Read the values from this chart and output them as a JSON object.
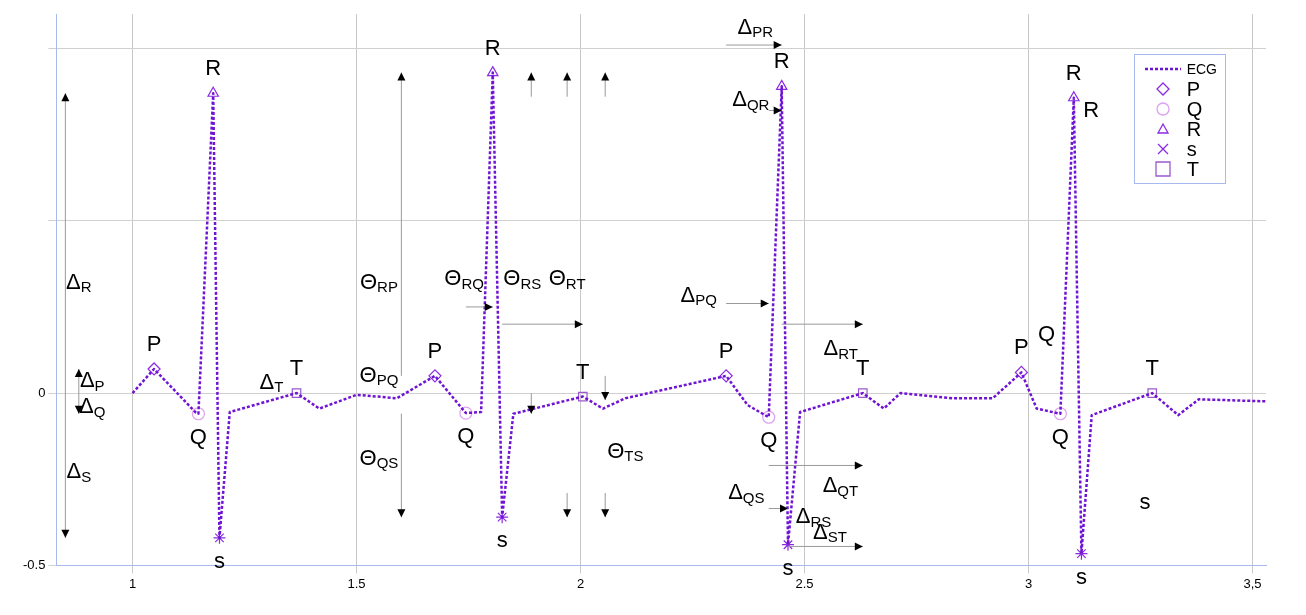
{
  "chart_data": {
    "type": "line",
    "xlim": [
      0.83,
      3.53
    ],
    "ylim": [
      -0.5,
      1.1
    ],
    "xticks": [
      1,
      1.5,
      2,
      2.5,
      3,
      {
        "value": 3.5,
        "label": "3,5"
      }
    ],
    "yticks": [
      -0.5,
      0,
      {
        "value": 0.5,
        "label": null
      },
      {
        "value": 1,
        "label": null
      }
    ],
    "grid": true,
    "legend": "top right",
    "series": [
      {
        "name": "ECG",
        "color": "#7014d4",
        "marker": "none",
        "line_style": "dotted",
        "x": [
          1,
          1.048,
          1.14,
          1.147,
          1.18,
          1.194,
          1.217,
          1.366,
          1.417,
          1.5,
          1.59,
          1.675,
          1.744,
          1.778,
          1.804,
          1.825,
          1.85,
          2.005,
          2.05,
          2.1,
          2.325,
          2.373,
          2.42,
          2.449,
          2.463,
          2.49,
          2.63,
          2.677,
          2.714,
          2.83,
          2.92,
          2.984,
          3.018,
          3.071,
          3.101,
          3.118,
          3.141,
          3.276,
          3.334,
          3.38,
          3.53
        ],
        "values": [
          0,
          0.07,
          -0.055,
          -0.06,
          0.87,
          -0.42,
          -0.055,
          0,
          -0.045,
          -0.005,
          -0.015,
          0.05,
          -0.058,
          -0.055,
          0.93,
          -0.36,
          -0.06,
          -0.01,
          -0.045,
          -0.015,
          0.05,
          -0.035,
          -0.07,
          0.89,
          -0.44,
          -0.055,
          0,
          -0.045,
          0,
          -0.015,
          -0.015,
          0.06,
          -0.045,
          -0.06,
          0.857,
          -0.466,
          -0.064,
          0,
          -0.064,
          -0.018,
          -0.024
        ]
      },
      {
        "name": "P",
        "type": "scatter",
        "color": "#8a2be2",
        "marker": "diamond",
        "x": [
          1.048,
          1.675,
          2.325,
          2.984
        ],
        "values": [
          0.07,
          0.05,
          0.05,
          0.06
        ]
      },
      {
        "name": "Q",
        "type": "scatter",
        "color": "#dda0f0",
        "marker": "circle",
        "x": [
          1.147,
          1.744,
          2.42,
          3.071
        ],
        "values": [
          -0.06,
          -0.058,
          -0.07,
          -0.06
        ]
      },
      {
        "name": "R",
        "type": "scatter",
        "color": "#8a2be2",
        "marker": "triangle",
        "x": [
          1.18,
          1.804,
          2.449,
          3.101
        ],
        "values": [
          0.87,
          0.93,
          0.89,
          0.857
        ]
      },
      {
        "name": "s",
        "type": "scatter",
        "color": "#8a2be2",
        "marker": "cross",
        "x": [
          1.194,
          1.825,
          2.463,
          3.118
        ],
        "values": [
          -0.42,
          -0.36,
          -0.44,
          -0.466
        ]
      },
      {
        "name": "T",
        "type": "scatter",
        "color": "#9b59d0",
        "marker": "square",
        "x": [
          1.366,
          2.005,
          2.63,
          3.276
        ],
        "values": [
          0,
          -0.01,
          0,
          0
        ]
      }
    ],
    "annotations": [
      {
        "text": "P",
        "x": 1.048,
        "y": 0.07
      },
      {
        "text": "Q",
        "x": 1.147,
        "y": -0.06
      },
      {
        "text": "R",
        "x": 1.18,
        "y": 0.87
      },
      {
        "text": "s",
        "x": 1.194,
        "y": -0.42
      },
      {
        "text": "T",
        "x": 1.366,
        "y": 0
      },
      {
        "text": "P",
        "x": 1.675,
        "y": 0.05
      },
      {
        "text": "Q",
        "x": 1.744,
        "y": -0.058
      },
      {
        "text": "R",
        "x": 1.804,
        "y": 0.93
      },
      {
        "text": "s",
        "x": 1.825,
        "y": -0.36
      },
      {
        "text": "T",
        "x": 2.005,
        "y": -0.01
      },
      {
        "text": "P",
        "x": 2.325,
        "y": 0.05
      },
      {
        "text": "Q",
        "x": 2.42,
        "y": -0.07
      },
      {
        "text": "R",
        "x": 2.449,
        "y": 0.89
      },
      {
        "text": "s",
        "x": 2.463,
        "y": -0.44
      },
      {
        "text": "T",
        "x": 2.63,
        "y": 0
      },
      {
        "text": "P",
        "x": 2.984,
        "y": 0.06
      },
      {
        "text": "Q",
        "x": 3.071,
        "y": -0.06
      },
      {
        "text": "R",
        "x": 3.101,
        "y": 0.857
      },
      {
        "text": "s",
        "x": 3.118,
        "y": -0.466
      },
      {
        "text": "T",
        "x": 3.276,
        "y": 0
      },
      "R",
      "Q",
      "s",
      "Δ$_{R}$",
      "Δ$_{P}$",
      "Δ$_{Q}$",
      "Δ$_{S}$",
      "Δ$_{T}$",
      "Θ$_{RP}$",
      "Θ$_{PQ}$",
      "Θ$_{QS}$",
      "Θ$_{RQ}$",
      "Θ$_{RS}$",
      "Θ$_{RT}$",
      "Θ$_{TS}$",
      "Δ$_{PR}$",
      "Δ$_{QR}$",
      {
        "text": "Δ$_{PQ}$",
        "x": 2.42,
        "y": 0.26
      },
      {
        "text": "Δ$_{RT}$",
        "x": 2.63,
        "y": 0
      },
      "Δ$_{QS}$",
      "Δ$_{QT}$",
      "Δ$_{RS}$",
      {
        "text": "Δ$_{ST}$",
        "x": 2.463,
        "y": -0.44
      }
    ]
  }
}
